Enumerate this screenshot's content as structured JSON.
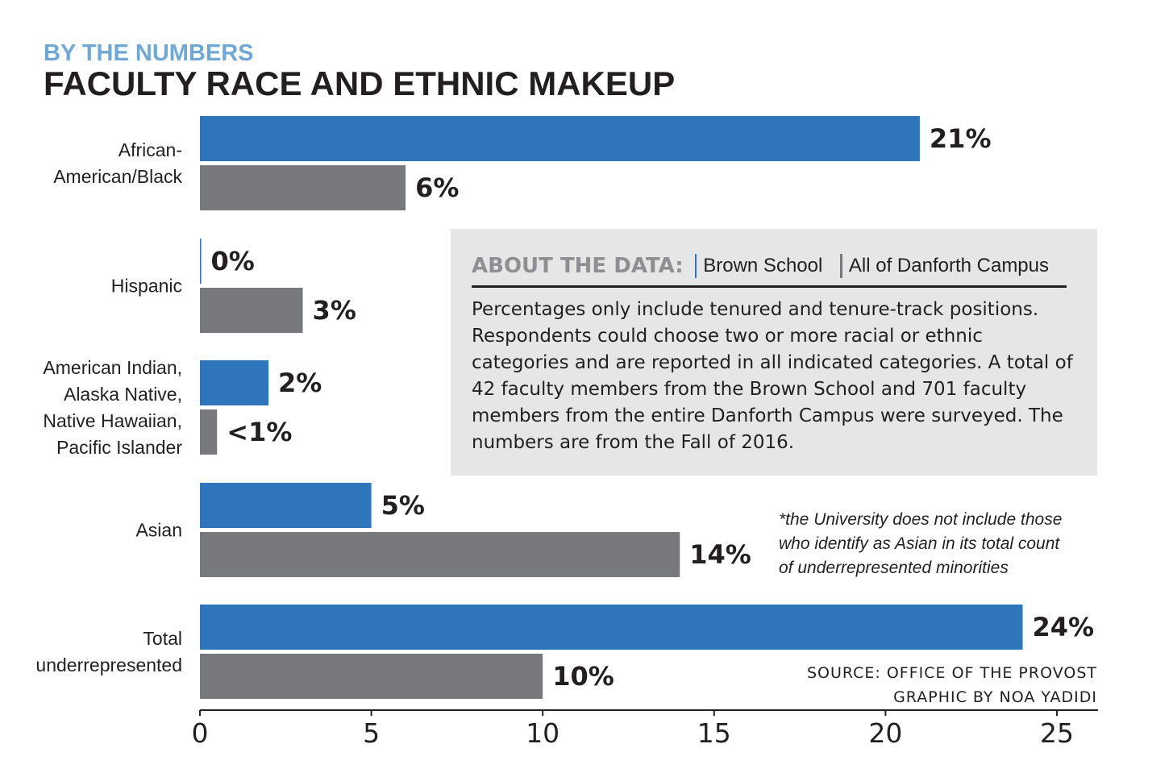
{
  "header": {
    "kicker": "BY THE NUMBERS",
    "title": "FACULTY RACE AND ETHNIC MAKEUP"
  },
  "chart_data": {
    "type": "bar",
    "orientation": "horizontal",
    "categories": [
      [
        "African-",
        "American/Black"
      ],
      [
        "Hispanic"
      ],
      [
        "American Indian,",
        "Alaska Native,",
        "Native Hawaiian,",
        "Pacific Islander"
      ],
      [
        "Asian"
      ],
      [
        "Total",
        "underrepresented"
      ]
    ],
    "series": [
      {
        "name": "Brown School",
        "color": "#2e75bb",
        "values": [
          21,
          0,
          2,
          5,
          24
        ],
        "labels": [
          "21%",
          "0%",
          "2%",
          "5%",
          "24%"
        ]
      },
      {
        "name": "All of Danforth Campus",
        "color": "#78797d",
        "values": [
          6,
          3,
          0.5,
          14,
          10
        ],
        "labels": [
          "6%",
          "3%",
          "<1%",
          "14%",
          "10%"
        ]
      }
    ],
    "xlim": [
      0,
      25
    ],
    "xticks": [
      0,
      5,
      10,
      15,
      20,
      25
    ],
    "grid": false,
    "legend": "in-panel"
  },
  "about": {
    "heading": "ABOUT THE DATA:",
    "body": "Percentages only include tenured and tenure-track positions. Respondents could choose two or more racial or ethnic categories and are reported in all indicated categories. A total of 42 faculty members from the Brown School and 701 faculty members from the entire Danforth Campus were surveyed. The numbers are from the Fall of 2016."
  },
  "footnote": "*the University does not include those who identify as  Asian in its total count of underrepresented minorities",
  "credits": {
    "source": "SOURCE: OFFICE OF THE PROVOST",
    "graphic": "GRAPHIC BY NOA YADIDI"
  }
}
